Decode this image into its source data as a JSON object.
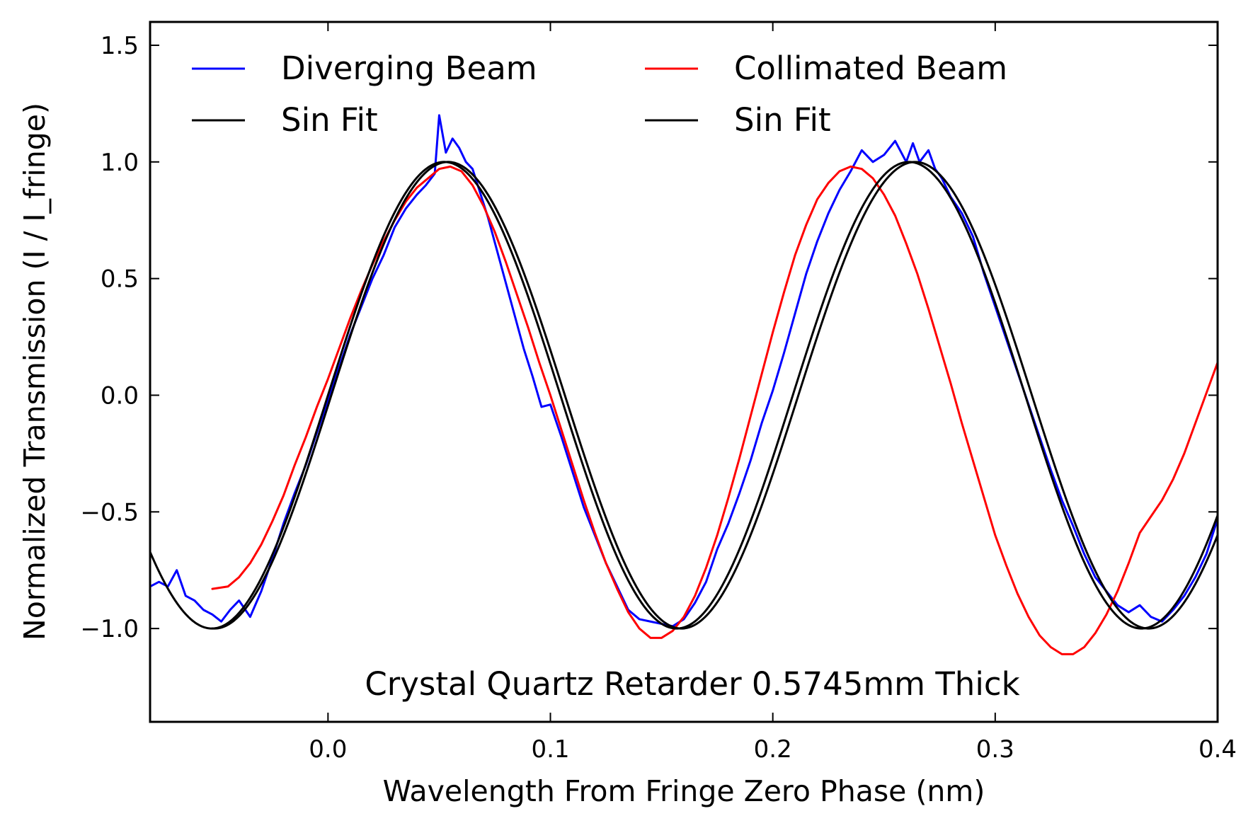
{
  "chart_data": {
    "type": "line",
    "title": "",
    "annotation": "Crystal Quartz Retarder 0.5745mm Thick",
    "xlabel": "Wavelength From Fringe Zero Phase (nm)",
    "ylabel": "Normalized Transmission (I / I_fringe)",
    "xlim": [
      -0.08,
      0.4
    ],
    "ylim": [
      -1.4,
      1.6
    ],
    "xticks": [
      0.0,
      0.1,
      0.2,
      0.3,
      0.4
    ],
    "xtick_labels": [
      "0.0",
      "0.1",
      "0.2",
      "0.3",
      "0.4"
    ],
    "yticks": [
      -1.0,
      -0.5,
      0.0,
      0.5,
      1.0,
      1.5
    ],
    "ytick_labels": [
      "−1.0",
      "−0.5",
      "0.0",
      "0.5",
      "1.0",
      "1.5"
    ],
    "grid": false,
    "legend": {
      "placement": "top",
      "columns": 2,
      "entries": [
        "Diverging Beam",
        "Collimated Beam",
        "Sin Fit",
        "Sin Fit"
      ]
    },
    "series": [
      {
        "name": "Diverging Beam",
        "color": "#0000ff",
        "x": [
          -0.08,
          -0.076,
          -0.072,
          -0.068,
          -0.064,
          -0.06,
          -0.056,
          -0.052,
          -0.048,
          -0.044,
          -0.04,
          -0.035,
          -0.03,
          -0.025,
          -0.02,
          -0.015,
          -0.01,
          -0.005,
          0.0,
          0.005,
          0.01,
          0.015,
          0.02,
          0.025,
          0.03,
          0.035,
          0.04,
          0.044,
          0.048,
          0.05,
          0.053,
          0.056,
          0.059,
          0.062,
          0.065,
          0.068,
          0.072,
          0.076,
          0.08,
          0.084,
          0.088,
          0.092,
          0.096,
          0.1,
          0.105,
          0.11,
          0.115,
          0.12,
          0.125,
          0.13,
          0.135,
          0.14,
          0.145,
          0.15,
          0.155,
          0.16,
          0.165,
          0.17,
          0.175,
          0.18,
          0.185,
          0.19,
          0.195,
          0.2,
          0.205,
          0.21,
          0.215,
          0.22,
          0.225,
          0.23,
          0.235,
          0.24,
          0.245,
          0.25,
          0.255,
          0.26,
          0.263,
          0.266,
          0.27,
          0.273,
          0.276,
          0.28,
          0.285,
          0.29,
          0.295,
          0.3,
          0.305,
          0.31,
          0.315,
          0.32,
          0.325,
          0.33,
          0.335,
          0.34,
          0.345,
          0.35,
          0.355,
          0.36,
          0.365,
          0.37,
          0.375,
          0.38,
          0.385,
          0.39,
          0.395,
          0.4
        ],
        "y": [
          -0.82,
          -0.8,
          -0.82,
          -0.75,
          -0.86,
          -0.88,
          -0.92,
          -0.94,
          -0.97,
          -0.92,
          -0.88,
          -0.95,
          -0.84,
          -0.7,
          -0.55,
          -0.42,
          -0.3,
          -0.16,
          -0.02,
          0.12,
          0.26,
          0.38,
          0.5,
          0.6,
          0.72,
          0.8,
          0.86,
          0.9,
          0.95,
          1.2,
          1.04,
          1.1,
          1.06,
          1.0,
          0.97,
          0.88,
          0.76,
          0.62,
          0.48,
          0.34,
          0.2,
          0.08,
          -0.05,
          -0.04,
          -0.18,
          -0.33,
          -0.48,
          -0.6,
          -0.72,
          -0.82,
          -0.92,
          -0.96,
          -0.97,
          -0.98,
          -0.99,
          -0.96,
          -0.89,
          -0.8,
          -0.66,
          -0.55,
          -0.42,
          -0.28,
          -0.12,
          0.02,
          0.18,
          0.35,
          0.52,
          0.66,
          0.78,
          0.88,
          0.96,
          1.05,
          1.0,
          1.03,
          1.09,
          1.0,
          1.08,
          1.0,
          1.05,
          0.97,
          0.93,
          0.85,
          0.78,
          0.68,
          0.52,
          0.38,
          0.24,
          0.1,
          -0.04,
          -0.18,
          -0.32,
          -0.45,
          -0.56,
          -0.68,
          -0.78,
          -0.84,
          -0.9,
          -0.93,
          -0.9,
          -0.95,
          -0.97,
          -0.92,
          -0.86,
          -0.78,
          -0.68,
          -0.53
        ]
      },
      {
        "name": "Collimated Beam",
        "color": "#ff0000",
        "x": [
          -0.052,
          -0.045,
          -0.04,
          -0.035,
          -0.03,
          -0.025,
          -0.02,
          -0.015,
          -0.01,
          -0.005,
          0.0,
          0.005,
          0.01,
          0.015,
          0.02,
          0.025,
          0.03,
          0.035,
          0.04,
          0.045,
          0.05,
          0.055,
          0.06,
          0.065,
          0.07,
          0.075,
          0.08,
          0.085,
          0.09,
          0.095,
          0.1,
          0.105,
          0.11,
          0.115,
          0.12,
          0.125,
          0.13,
          0.135,
          0.14,
          0.145,
          0.15,
          0.155,
          0.16,
          0.165,
          0.17,
          0.175,
          0.18,
          0.185,
          0.19,
          0.195,
          0.2,
          0.205,
          0.21,
          0.215,
          0.22,
          0.225,
          0.23,
          0.235,
          0.24,
          0.245,
          0.25,
          0.255,
          0.26,
          0.265,
          0.27,
          0.275,
          0.28,
          0.285,
          0.29,
          0.295,
          0.3,
          0.305,
          0.31,
          0.315,
          0.32,
          0.325,
          0.33,
          0.335,
          0.34,
          0.345,
          0.35,
          0.355,
          0.36,
          0.365,
          0.37,
          0.375,
          0.38,
          0.385,
          0.39,
          0.395,
          0.4
        ],
        "y": [
          -0.83,
          -0.82,
          -0.78,
          -0.72,
          -0.64,
          -0.54,
          -0.43,
          -0.3,
          -0.18,
          -0.05,
          0.07,
          0.2,
          0.33,
          0.45,
          0.56,
          0.66,
          0.75,
          0.83,
          0.89,
          0.93,
          0.97,
          0.98,
          0.96,
          0.9,
          0.81,
          0.7,
          0.57,
          0.43,
          0.29,
          0.14,
          0.0,
          -0.15,
          -0.3,
          -0.45,
          -0.59,
          -0.72,
          -0.83,
          -0.93,
          -1.0,
          -1.04,
          -1.04,
          -1.01,
          -0.95,
          -0.86,
          -0.74,
          -0.6,
          -0.44,
          -0.27,
          -0.09,
          0.09,
          0.27,
          0.44,
          0.6,
          0.73,
          0.84,
          0.91,
          0.96,
          0.98,
          0.97,
          0.93,
          0.86,
          0.77,
          0.65,
          0.52,
          0.37,
          0.21,
          0.05,
          -0.12,
          -0.28,
          -0.44,
          -0.6,
          -0.73,
          -0.85,
          -0.95,
          -1.03,
          -1.08,
          -1.11,
          -1.11,
          -1.08,
          -1.02,
          -0.94,
          -0.84,
          -0.72,
          -0.59,
          -0.52,
          -0.45,
          -0.36,
          -0.25,
          -0.12,
          0.01,
          0.14
        ]
      },
      {
        "name": "Sin Fit",
        "color": "#000000",
        "function": "sin",
        "amplitude": 1.0,
        "period": 0.209,
        "zero_crossing": 0.0,
        "x_range": [
          -0.08,
          0.4
        ]
      },
      {
        "name": "Sin Fit",
        "color": "#000000",
        "function": "sin",
        "amplitude": 1.0,
        "period": 0.21,
        "zero_crossing": 0.0015,
        "x_range": [
          -0.052,
          0.4
        ]
      }
    ]
  }
}
